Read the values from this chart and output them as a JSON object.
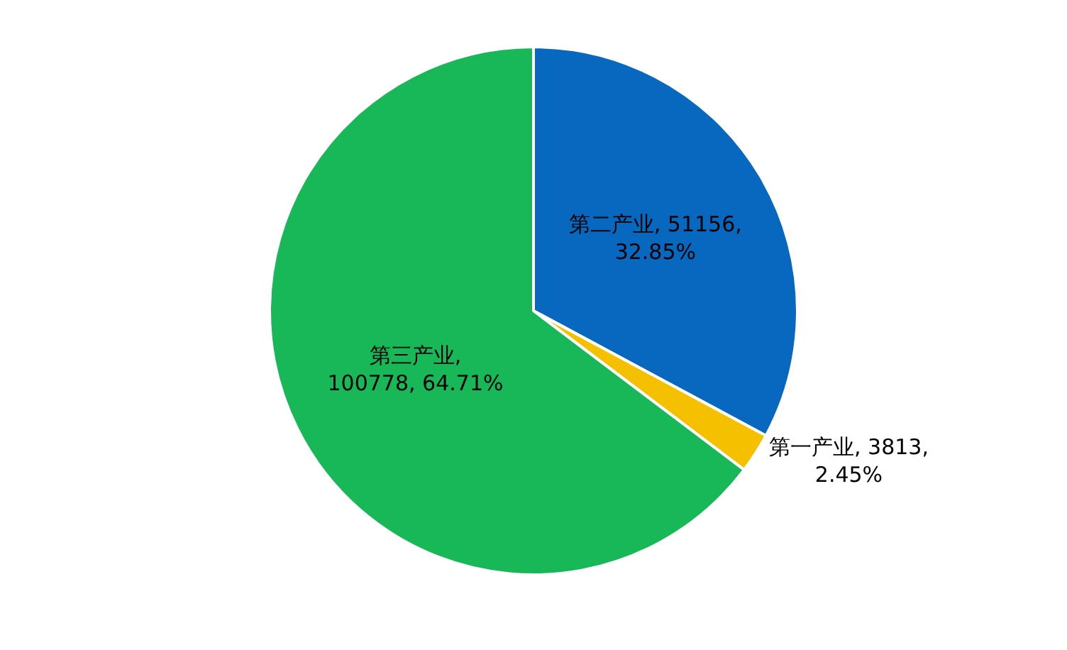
{
  "chart_data": {
    "type": "pie",
    "categories": [
      "第二产业",
      "第一产业",
      "第三产业"
    ],
    "values": [
      51156,
      3813,
      100778
    ],
    "value_labels": [
      ", 51156,\n32.85%",
      ", 3813,\n2.45%",
      ",\n100778, 64.71%"
    ],
    "colors": [
      "#0868c0",
      "#f5c000",
      "#18b858"
    ],
    "legend": false
  }
}
